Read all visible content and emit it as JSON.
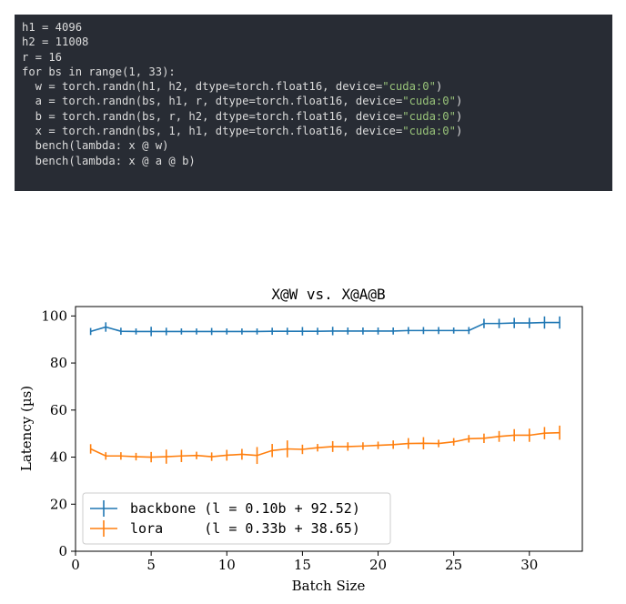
{
  "code": {
    "lines": [
      [
        {
          "t": "h1 = 4096"
        }
      ],
      [
        {
          "t": "h2 = 11008"
        }
      ],
      [
        {
          "t": "r = 16"
        }
      ],
      [
        {
          "t": "for bs in range(1, 33):"
        }
      ],
      [
        {
          "t": "  w = torch.randn(h1, h2, dtype=torch.float16, device="
        },
        {
          "t": "\"cuda:0\"",
          "s": true
        },
        {
          "t": ")"
        }
      ],
      [
        {
          "t": "  a = torch.randn(bs, h1, r, dtype=torch.float16, device="
        },
        {
          "t": "\"cuda:0\"",
          "s": true
        },
        {
          "t": ")"
        }
      ],
      [
        {
          "t": "  b = torch.randn(bs, r, h2, dtype=torch.float16, device="
        },
        {
          "t": "\"cuda:0\"",
          "s": true
        },
        {
          "t": ")"
        }
      ],
      [
        {
          "t": "  x = torch.randn(bs, 1, h1, dtype=torch.float16, device="
        },
        {
          "t": "\"cuda:0\"",
          "s": true
        },
        {
          "t": ")"
        }
      ],
      [
        {
          "t": "  bench(lambda: x @ w)"
        }
      ],
      [
        {
          "t": "  bench(lambda: x @ a @ b)"
        }
      ]
    ]
  },
  "chart_data": {
    "type": "line",
    "title": "X@W vs. X@A@B",
    "xlabel": "Batch Size",
    "ylabel": "Latency (µs)",
    "xlim": [
      0,
      33.5
    ],
    "ylim": [
      0,
      104
    ],
    "xticks": [
      0,
      5,
      10,
      15,
      20,
      25,
      30
    ],
    "yticks": [
      0,
      20,
      40,
      60,
      80,
      100
    ],
    "grid": false,
    "legend_position": "lower-left",
    "x": [
      1,
      2,
      3,
      4,
      5,
      6,
      7,
      8,
      9,
      10,
      11,
      12,
      13,
      14,
      15,
      16,
      17,
      18,
      19,
      20,
      21,
      22,
      23,
      24,
      25,
      26,
      27,
      28,
      29,
      30,
      31,
      32
    ],
    "series": [
      {
        "name": "backbone",
        "legend_label": "backbone (l = 0.10b + 92.52)",
        "color": "#1f77b4",
        "values": [
          93.4,
          95.3,
          93.5,
          93.4,
          93.4,
          93.4,
          93.4,
          93.4,
          93.4,
          93.4,
          93.4,
          93.4,
          93.5,
          93.5,
          93.5,
          93.5,
          93.6,
          93.6,
          93.6,
          93.6,
          93.6,
          93.8,
          93.8,
          93.8,
          93.8,
          93.8,
          96.8,
          96.8,
          97.0,
          97.0,
          97.2,
          97.2
        ],
        "err": [
          1.5,
          2.0,
          1.5,
          1.3,
          2.0,
          1.6,
          1.3,
          1.3,
          1.5,
          1.3,
          1.3,
          1.3,
          1.5,
          1.5,
          1.8,
          1.5,
          1.8,
          1.5,
          1.5,
          1.5,
          1.5,
          1.5,
          1.5,
          1.5,
          1.3,
          1.5,
          2.0,
          2.0,
          2.2,
          2.2,
          2.6,
          2.6
        ]
      },
      {
        "name": "lora",
        "legend_label": "lora     (l = 0.33b + 38.65)",
        "color": "#ff7f0e",
        "values": [
          43.5,
          40.5,
          40.5,
          40.2,
          40.0,
          40.2,
          40.5,
          40.7,
          40.2,
          40.8,
          41.2,
          40.7,
          42.8,
          43.5,
          43.3,
          44.0,
          44.5,
          44.5,
          44.7,
          45.0,
          45.3,
          45.8,
          45.9,
          45.8,
          46.5,
          47.8,
          48.0,
          48.8,
          49.3,
          49.3,
          50.2,
          50.4
        ],
        "err": [
          2.0,
          1.6,
          1.6,
          1.6,
          2.2,
          3.0,
          2.6,
          1.6,
          1.8,
          2.3,
          2.3,
          3.6,
          2.8,
          3.6,
          2.0,
          1.6,
          2.3,
          1.8,
          1.6,
          1.6,
          1.8,
          2.3,
          2.6,
          1.6,
          1.6,
          1.6,
          2.0,
          2.3,
          2.6,
          2.8,
          2.6,
          3.0
        ]
      }
    ]
  }
}
